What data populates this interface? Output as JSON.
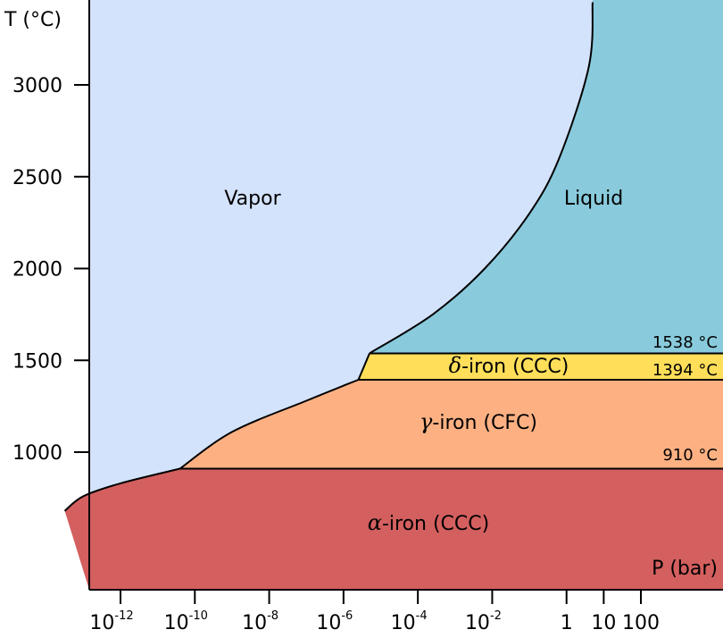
{
  "chart_data": {
    "type": "area",
    "title": "",
    "xlabel": "P (bar)",
    "ylabel": "T (°C)",
    "x_scale": "log",
    "y_ticks": [
      1000,
      1500,
      2000,
      2500,
      3000
    ],
    "y_tick_labels": [
      "1000",
      "1500",
      "2000",
      "2500",
      "3000"
    ],
    "x_ticks": [
      {
        "base": "10",
        "exp": "-12"
      },
      {
        "base": "10",
        "exp": "-10"
      },
      {
        "base": "10",
        "exp": "-8"
      },
      {
        "base": "10",
        "exp": "-6"
      },
      {
        "base": "10",
        "exp": "-4"
      },
      {
        "base": "10",
        "exp": "-2"
      },
      {
        "base": "1",
        "exp": ""
      },
      {
        "base": "10",
        "exp": ""
      },
      {
        "base": "100",
        "exp": ""
      }
    ],
    "x_tick_exponents": [
      -12,
      -10,
      -8,
      -6,
      -4,
      -2,
      0,
      1,
      2
    ],
    "regions": [
      {
        "name": "Vapor",
        "greek": "",
        "color": "#d4e3fc"
      },
      {
        "name": "Liquid",
        "greek": "",
        "color": "#89cbdc"
      },
      {
        "name": "-iron (CCC)",
        "greek": "δ",
        "color": "#ffde59"
      },
      {
        "name": "-iron (CFC)",
        "greek": "γ",
        "color": "#fdb183"
      },
      {
        "name": "-iron (CCC)",
        "greek": "α",
        "color": "#d45f5f"
      }
    ],
    "transition_temperatures": [
      {
        "value": 1538,
        "label": "1538 °C"
      },
      {
        "value": 1394,
        "label": "1394 °C"
      },
      {
        "value": 910,
        "label": "910 °C"
      }
    ],
    "boundaries": {
      "liquid_vapor": [
        [
          -5.3,
          1538
        ],
        [
          -3.6,
          1750
        ],
        [
          -2.2,
          2000
        ],
        [
          -1.0,
          2300
        ],
        [
          -0.2,
          2600
        ],
        [
          0.6,
          3100
        ],
        [
          0.7,
          3450
        ]
      ],
      "delta_vapor": [
        [
          -5.3,
          1538
        ],
        [
          -5.6,
          1394
        ]
      ],
      "gamma_vapor": [
        [
          -5.6,
          1394
        ],
        [
          -7.0,
          1280
        ],
        [
          -9.0,
          1110
        ],
        [
          -10.4,
          910
        ]
      ],
      "alpha_vapor": [
        [
          -10.4,
          910
        ],
        [
          -12.0,
          830
        ],
        [
          -13.0,
          760
        ],
        [
          -13.5,
          680
        ]
      ]
    }
  }
}
